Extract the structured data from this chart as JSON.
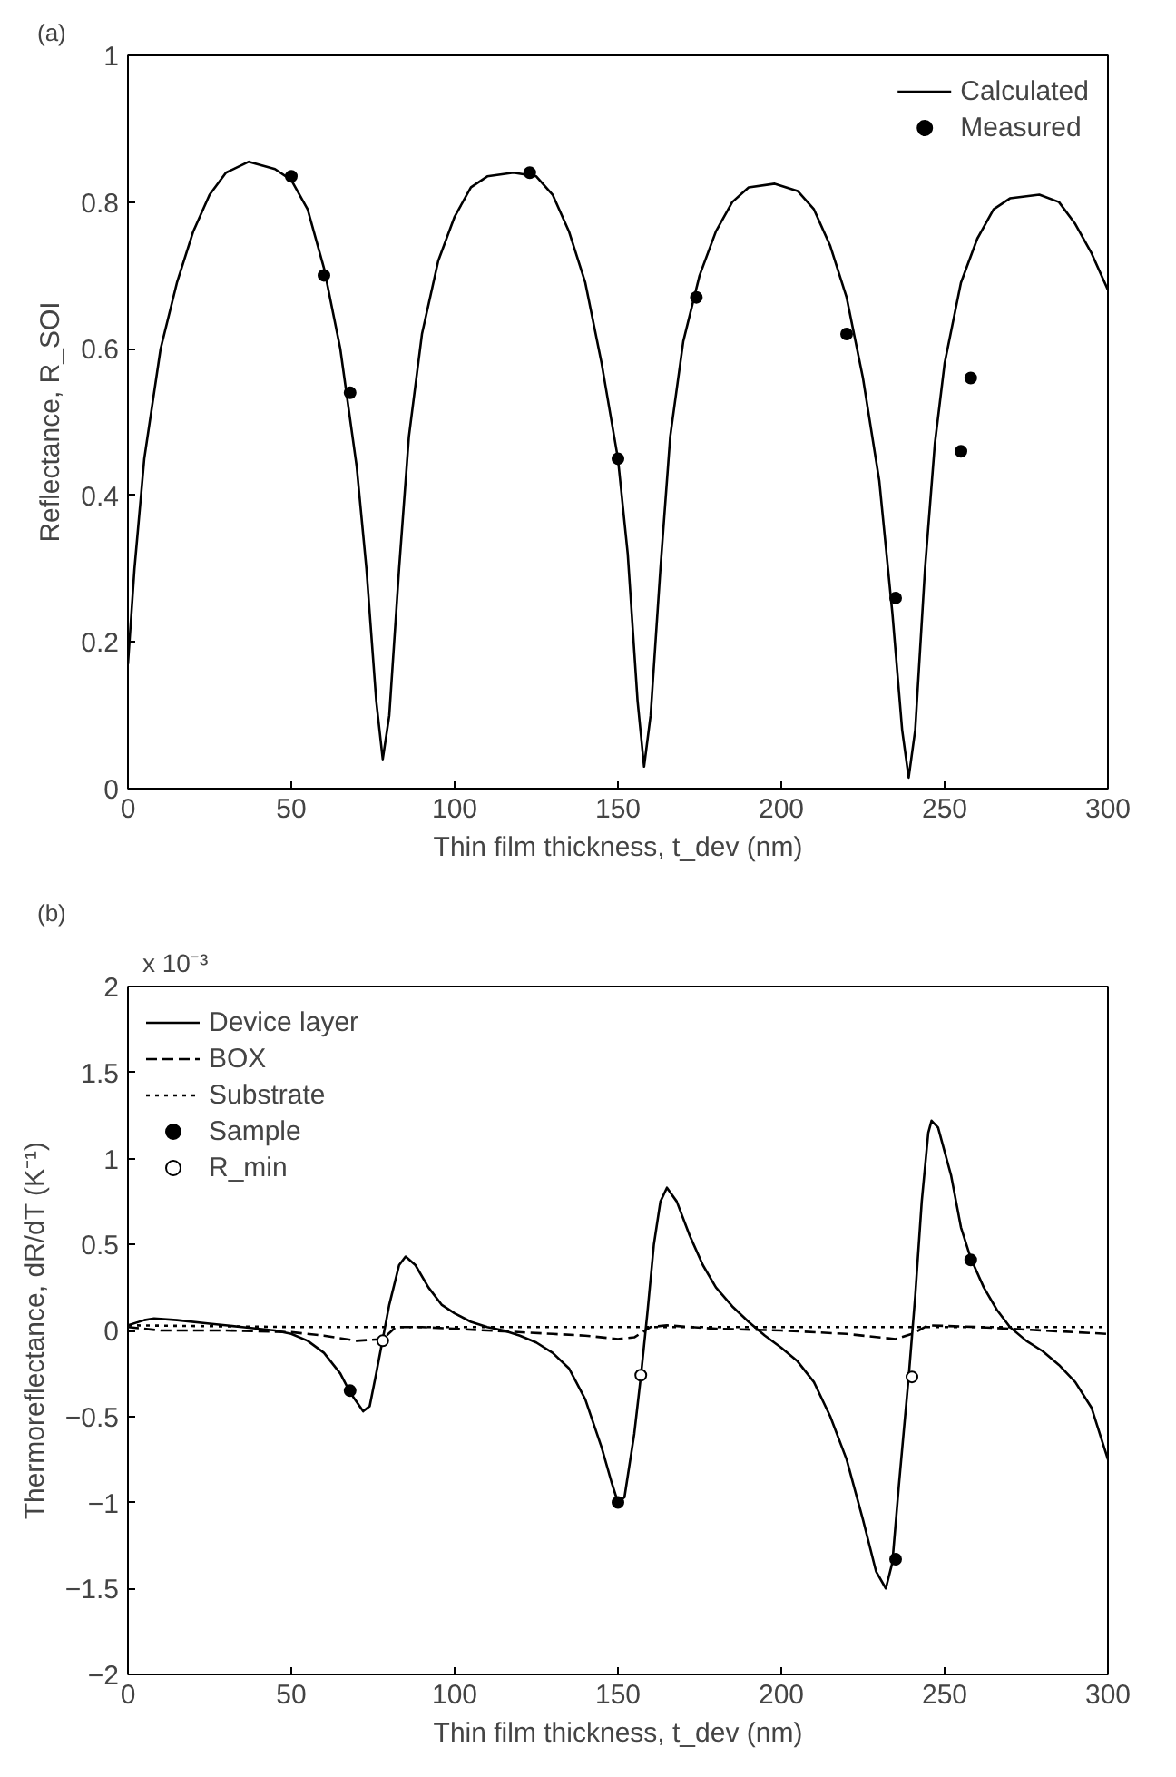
{
  "chart_data": [
    {
      "type": "line",
      "title": "(a)",
      "xlabel": "Thin film thickness, t_dev (nm)",
      "ylabel": "Reflectance, R_SOI",
      "xlim": [
        0,
        300
      ],
      "ylim": [
        0,
        1
      ],
      "xticks": [
        0,
        50,
        100,
        150,
        200,
        250,
        300
      ],
      "yticks": [
        0,
        0.2,
        0.4,
        0.6,
        0.8,
        1
      ],
      "grid": false,
      "legend": "top right",
      "series": [
        {
          "name": "Calculated",
          "color": "#000000",
          "line_style": "solid",
          "x": [
            0,
            2,
            5,
            10,
            15,
            20,
            25,
            30,
            37,
            45,
            50,
            55,
            60,
            65,
            70,
            73,
            76,
            78,
            80,
            83,
            86,
            90,
            95,
            100,
            105,
            110,
            118,
            125,
            130,
            135,
            140,
            145,
            150,
            153,
            156,
            158,
            160,
            163,
            166,
            170,
            175,
            180,
            185,
            190,
            198,
            205,
            210,
            215,
            220,
            225,
            230,
            234,
            237,
            239,
            241,
            244,
            247,
            250,
            255,
            260,
            265,
            270,
            279,
            285,
            290,
            295,
            300
          ],
          "values": [
            0.17,
            0.3,
            0.45,
            0.6,
            0.69,
            0.76,
            0.81,
            0.84,
            0.855,
            0.845,
            0.83,
            0.79,
            0.71,
            0.6,
            0.44,
            0.3,
            0.12,
            0.04,
            0.1,
            0.3,
            0.48,
            0.62,
            0.72,
            0.78,
            0.82,
            0.835,
            0.84,
            0.835,
            0.81,
            0.76,
            0.69,
            0.58,
            0.45,
            0.32,
            0.12,
            0.03,
            0.1,
            0.3,
            0.48,
            0.61,
            0.7,
            0.76,
            0.8,
            0.82,
            0.825,
            0.815,
            0.79,
            0.74,
            0.67,
            0.56,
            0.42,
            0.24,
            0.08,
            0.015,
            0.08,
            0.3,
            0.47,
            0.58,
            0.69,
            0.75,
            0.79,
            0.805,
            0.81,
            0.8,
            0.77,
            0.73,
            0.68
          ]
        },
        {
          "name": "Measured",
          "type": "scatter",
          "marker": "circle",
          "color": "#000000",
          "x": [
            50,
            60,
            68,
            123,
            150,
            174,
            220,
            235,
            255,
            258
          ],
          "values": [
            0.835,
            0.7,
            0.54,
            0.84,
            0.45,
            0.67,
            0.62,
            0.26,
            0.46,
            0.56
          ]
        }
      ]
    },
    {
      "type": "line",
      "title": "(b)",
      "xlabel": "Thin film thickness, t_dev (nm)",
      "ylabel": "Thermoreflectance, dR/dT (K⁻¹)",
      "annotations": [
        "x 10⁻³"
      ],
      "xlim": [
        0,
        300
      ],
      "ylim": [
        -2,
        2
      ],
      "xticks": [
        0,
        50,
        100,
        150,
        200,
        250,
        300
      ],
      "yticks": [
        -2,
        -1.5,
        -1,
        -0.5,
        0,
        0.5,
        1,
        1.5,
        2
      ],
      "grid": false,
      "legend": "top left",
      "series": [
        {
          "name": "Device layer",
          "color": "#000000",
          "line_style": "solid",
          "x": [
            0,
            5,
            8,
            15,
            25,
            35,
            45,
            50,
            55,
            60,
            65,
            68,
            72,
            74,
            76,
            78,
            80,
            83,
            85,
            88,
            92,
            96,
            100,
            105,
            110,
            115,
            120,
            125,
            130,
            135,
            140,
            145,
            148,
            150,
            152,
            155,
            157,
            159,
            161,
            163,
            165,
            168,
            172,
            176,
            180,
            185,
            190,
            195,
            200,
            205,
            210,
            215,
            220,
            225,
            229,
            232,
            234,
            236,
            239,
            241,
            243,
            245,
            246,
            248,
            252,
            255,
            258,
            262,
            266,
            270,
            275,
            280,
            285,
            290,
            295,
            300
          ],
          "values": [
            0.03,
            0.06,
            0.07,
            0.06,
            0.04,
            0.02,
            0.0,
            -0.02,
            -0.06,
            -0.13,
            -0.25,
            -0.36,
            -0.47,
            -0.44,
            -0.25,
            -0.05,
            0.15,
            0.38,
            0.43,
            0.38,
            0.25,
            0.15,
            0.1,
            0.05,
            0.02,
            0.0,
            -0.03,
            -0.07,
            -0.13,
            -0.22,
            -0.4,
            -0.68,
            -0.88,
            -1.0,
            -0.97,
            -0.6,
            -0.27,
            0.1,
            0.5,
            0.75,
            0.83,
            0.75,
            0.55,
            0.38,
            0.25,
            0.14,
            0.05,
            -0.03,
            -0.1,
            -0.18,
            -0.3,
            -0.5,
            -0.75,
            -1.1,
            -1.4,
            -1.5,
            -1.35,
            -0.9,
            -0.27,
            0.2,
            0.75,
            1.15,
            1.22,
            1.18,
            0.9,
            0.6,
            0.42,
            0.25,
            0.12,
            0.02,
            -0.06,
            -0.12,
            -0.2,
            -0.3,
            -0.45,
            -0.75
          ]
        },
        {
          "name": "BOX",
          "color": "#000000",
          "line_style": "dashed",
          "x": [
            0,
            10,
            30,
            50,
            60,
            70,
            78,
            82,
            90,
            110,
            130,
            140,
            150,
            155,
            160,
            165,
            180,
            200,
            220,
            235,
            240,
            245,
            260,
            280,
            300
          ],
          "values": [
            0.02,
            0.0,
            0.0,
            -0.01,
            -0.03,
            -0.06,
            -0.05,
            0.02,
            0.02,
            0.0,
            -0.02,
            -0.03,
            -0.05,
            -0.04,
            0.02,
            0.03,
            0.01,
            0.0,
            -0.02,
            -0.05,
            -0.02,
            0.03,
            0.02,
            0.0,
            -0.02
          ]
        },
        {
          "name": "Substrate",
          "color": "#000000",
          "line_style": "dotted",
          "x": [
            0,
            50,
            100,
            150,
            200,
            250,
            300
          ],
          "values": [
            0.03,
            0.02,
            0.02,
            0.02,
            0.02,
            0.02,
            0.02
          ]
        },
        {
          "name": "Sample",
          "type": "scatter",
          "marker": "circle",
          "color": "#000000",
          "x": [
            68,
            150,
            235,
            258
          ],
          "values": [
            -0.35,
            -1.0,
            -1.33,
            0.41
          ]
        },
        {
          "name": "R_min",
          "type": "scatter",
          "marker": "circle",
          "color": "#ffffff",
          "x": [
            78,
            157,
            240
          ],
          "values": [
            -0.06,
            -0.26,
            -0.27
          ]
        }
      ]
    }
  ]
}
